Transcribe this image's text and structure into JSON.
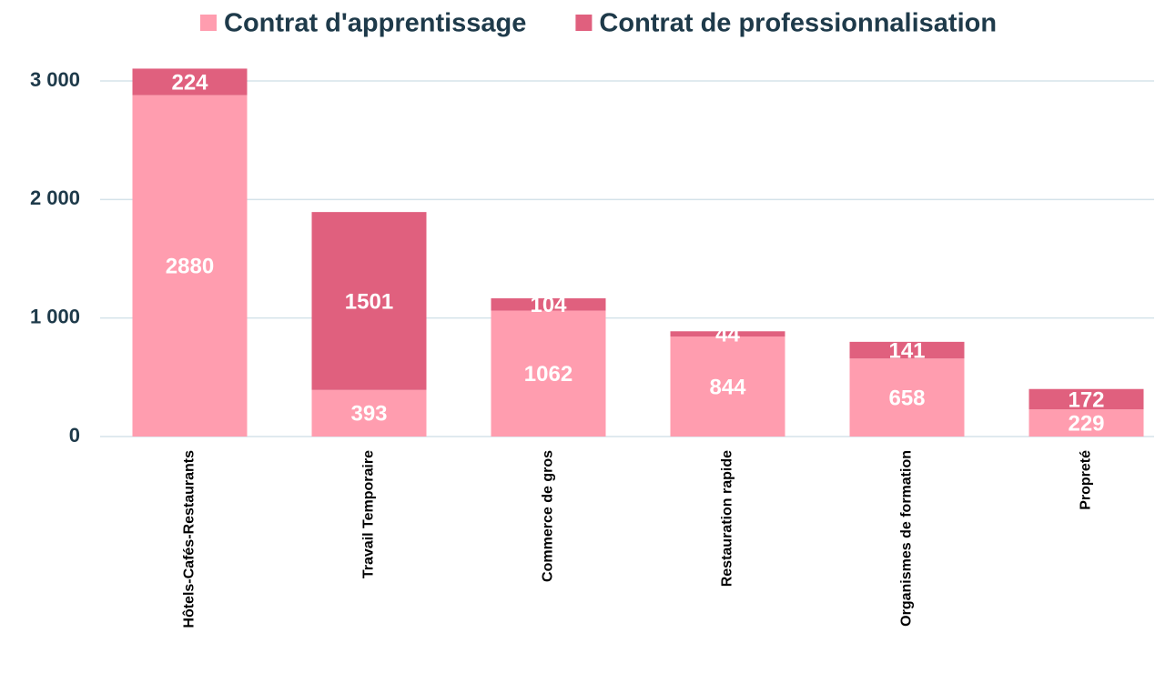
{
  "chart_data": {
    "type": "stacked_bar",
    "categories": [
      "Hôtels-Cafés-Restaurants",
      "Travail Temporaire",
      "Commerce de gros",
      "Restauration rapide",
      "Organismes de formation",
      "Propreté"
    ],
    "series": [
      {
        "name": "Contrat d'apprentissage",
        "color": "#ff9daf",
        "values": [
          2880,
          393,
          1062,
          844,
          658,
          229
        ]
      },
      {
        "name": "Contrat de professionnalisation",
        "color": "#e0607e",
        "values": [
          224,
          1501,
          104,
          44,
          141,
          172
        ]
      }
    ],
    "ylim": [
      0,
      3000
    ],
    "yticks": [
      0,
      {
        "value": 1000,
        "label": "1 000"
      },
      {
        "value": 2000,
        "label": "2 000"
      },
      {
        "value": 3000,
        "label": "3 000"
      }
    ],
    "grid": true,
    "legend": "top"
  }
}
